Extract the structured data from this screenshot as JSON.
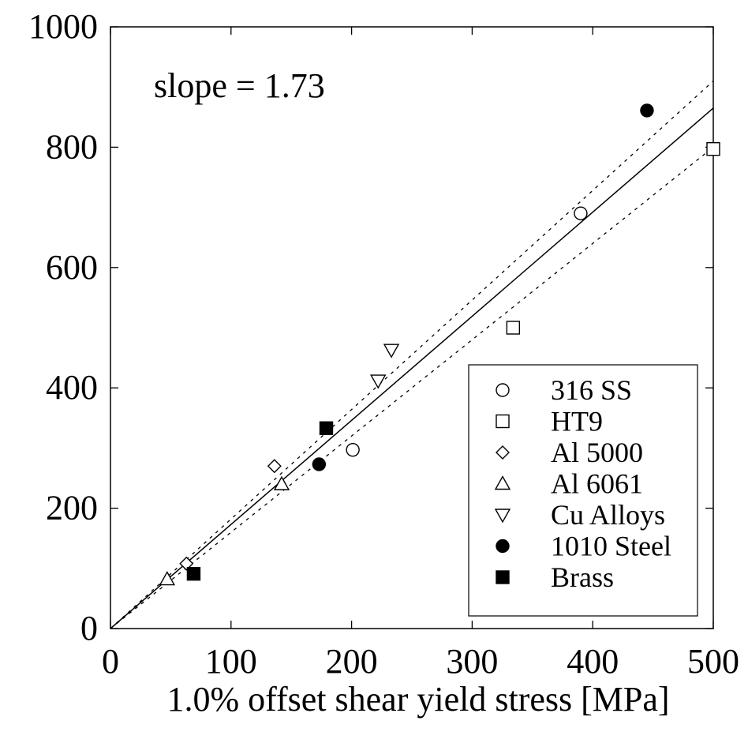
{
  "chart_data": {
    "type": "scatter",
    "title": "",
    "xlabel": "1.0% offset shear yield stress [MPa]",
    "ylabel": "",
    "xlim": [
      0,
      500
    ],
    "ylim": [
      0,
      1000
    ],
    "x_ticks": [
      0,
      100,
      200,
      300,
      400,
      500
    ],
    "y_ticks": [
      0,
      200,
      400,
      600,
      800,
      1000
    ],
    "grid": false,
    "legend_position": "bottom-right",
    "annotation": "slope = 1.73",
    "fit_lines": [
      {
        "style": "solid",
        "slope": 1.73,
        "intercept": 0
      },
      {
        "style": "dotted",
        "slope": 1.82,
        "intercept": 0
      },
      {
        "style": "dotted",
        "slope": 1.6,
        "intercept": 0
      }
    ],
    "series": [
      {
        "name": "316 SS",
        "marker": "circle-open",
        "points": [
          [
            201,
            297
          ],
          [
            390,
            690
          ]
        ]
      },
      {
        "name": "HT9",
        "marker": "square-open",
        "points": [
          [
            334,
            500
          ],
          [
            500,
            797
          ]
        ]
      },
      {
        "name": "Al 5000",
        "marker": "diamond-open",
        "points": [
          [
            63,
            108
          ],
          [
            136,
            270
          ]
        ]
      },
      {
        "name": "Al 6061",
        "marker": "triangle-up-open",
        "points": [
          [
            47,
            82
          ],
          [
            142,
            240
          ]
        ]
      },
      {
        "name": "Cu Alloys",
        "marker": "triangle-down-open",
        "points": [
          [
            222,
            412
          ],
          [
            233,
            463
          ]
        ]
      },
      {
        "name": "1010 Steel",
        "marker": "circle-filled",
        "points": [
          [
            173,
            273
          ],
          [
            445,
            861
          ]
        ]
      },
      {
        "name": "Brass",
        "marker": "square-filled",
        "points": [
          [
            69,
            91
          ],
          [
            179,
            333
          ]
        ]
      }
    ]
  }
}
